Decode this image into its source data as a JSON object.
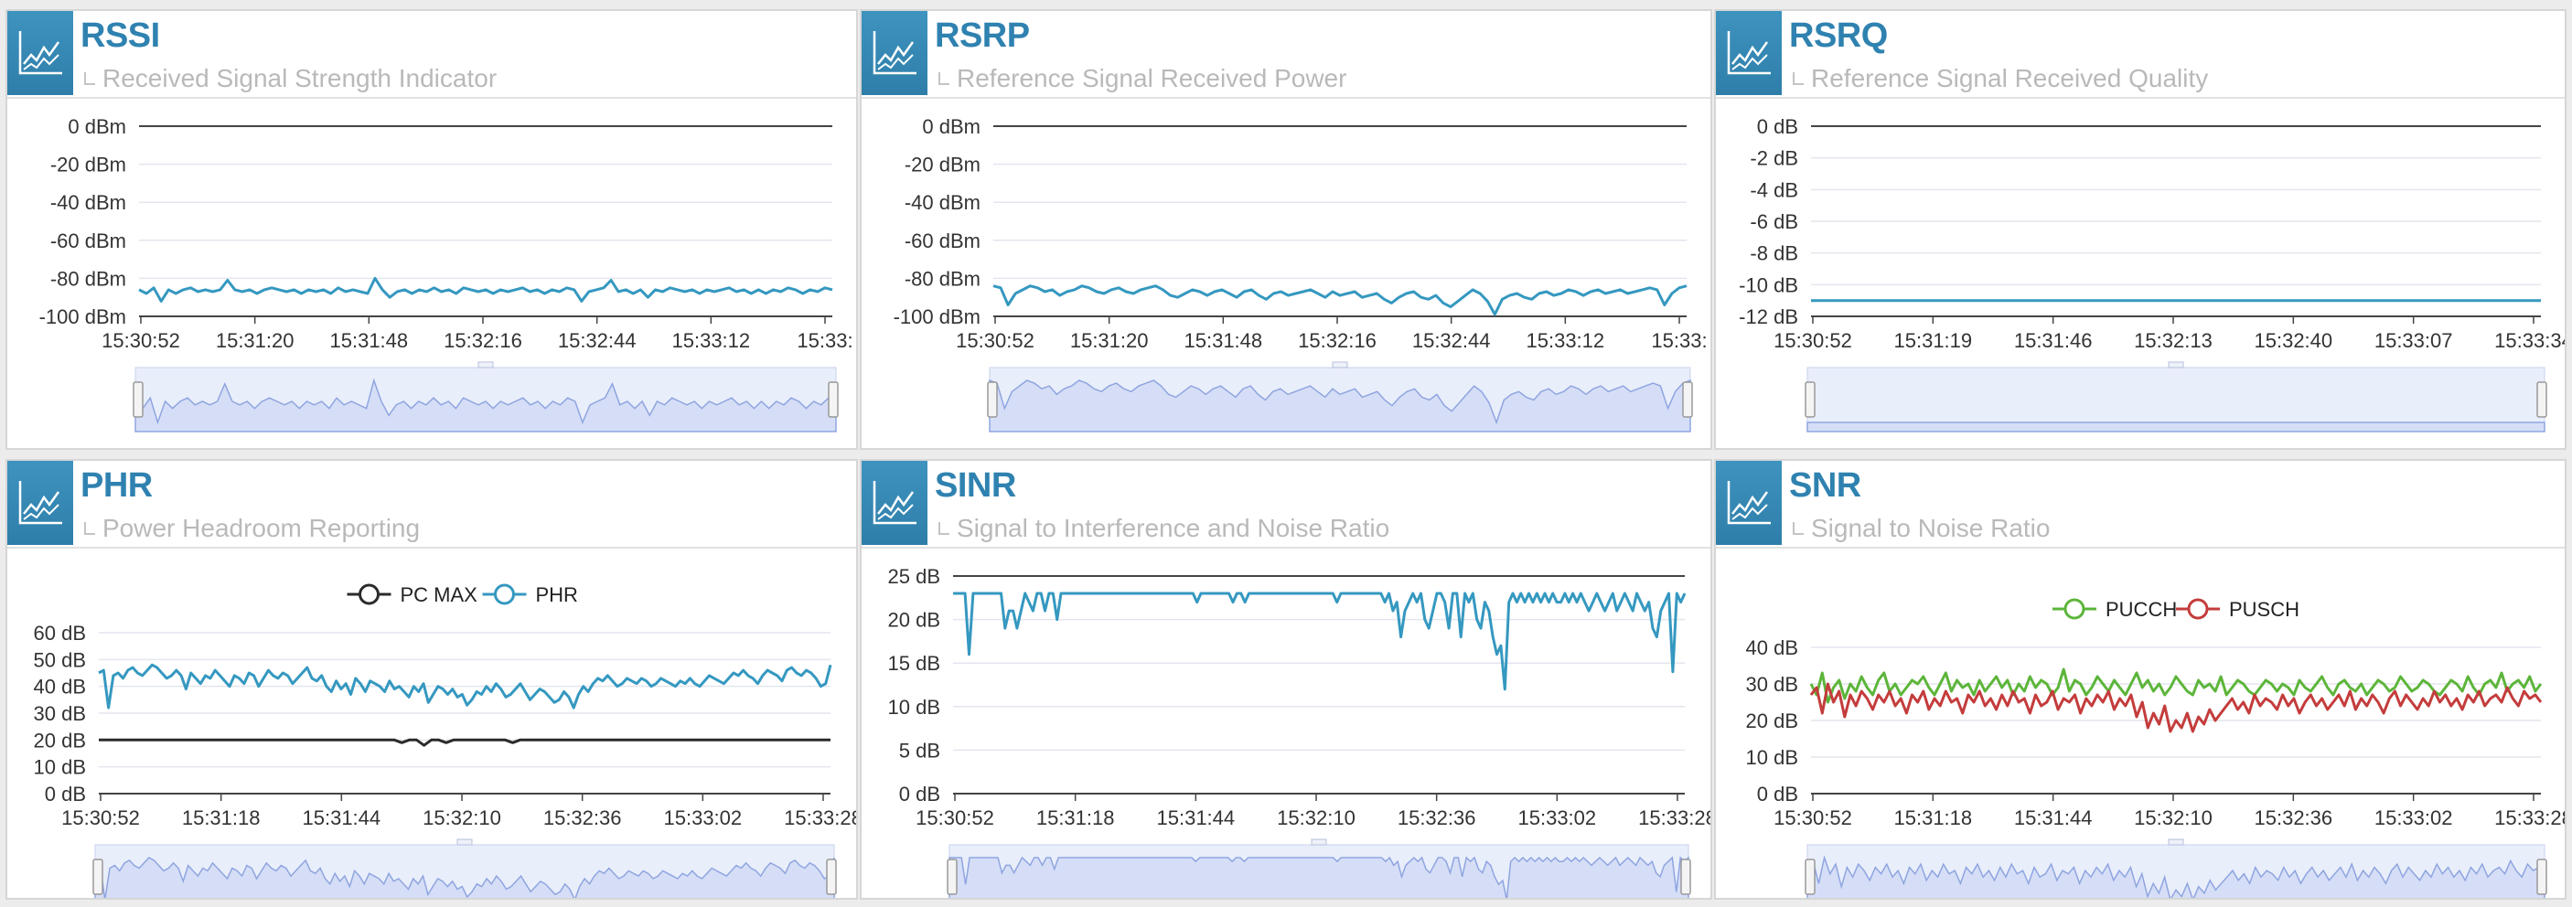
{
  "colors": {
    "series_blue": "#3598c0",
    "series_dark": "#2b2b2b",
    "series_green": "#5cb53a",
    "series_red": "#c43c3c",
    "navigator_fill": "#d9e2f7",
    "navigator_line": "#8fa5e0",
    "header_title": "#2f82b0",
    "icon_bg": "#3a8cba"
  },
  "panels": [
    {
      "title": "RSSI",
      "subtitle": "Received Signal Strength Indicator",
      "icon": "line-chart-icon"
    },
    {
      "title": "RSRP",
      "subtitle": "Reference Signal Received Power",
      "icon": "line-chart-icon"
    },
    {
      "title": "RSRQ",
      "subtitle": "Reference Signal Received Quality",
      "icon": "line-chart-icon"
    },
    {
      "title": "PHR",
      "subtitle": "Power Headroom Reporting",
      "icon": "line-chart-icon"
    },
    {
      "title": "SINR",
      "subtitle": "Signal to Interference and Noise Ratio",
      "icon": "line-chart-icon"
    },
    {
      "title": "SNR",
      "subtitle": "Signal to Noise Ratio",
      "icon": "line-chart-icon"
    }
  ],
  "chart_data": [
    {
      "type": "line",
      "title": "RSSI",
      "ylim": [
        -100,
        0
      ],
      "yticks": [
        "0 dBm",
        "-20 dBm",
        "-40 dBm",
        "-60 dBm",
        "-80 dBm",
        "-100 dBm"
      ],
      "xticks": [
        "15:30:52",
        "15:31:20",
        "15:31:48",
        "15:32:16",
        "15:32:44",
        "15:33:12",
        "15:33:"
      ],
      "grid": true,
      "legend": "none",
      "navigator": true,
      "series": [
        {
          "color": "#3598c0",
          "values": [
            -86,
            -88,
            -85,
            -92,
            -86,
            -88,
            -86,
            -85,
            -87,
            -86,
            -87,
            -86,
            -81,
            -86,
            -87,
            -86,
            -88,
            -86,
            -85,
            -86,
            -87,
            -86,
            -88,
            -86,
            -87,
            -86,
            -88,
            -85,
            -87,
            -86,
            -87,
            -88,
            -80,
            -86,
            -90,
            -87,
            -86,
            -88,
            -86,
            -87,
            -85,
            -87,
            -86,
            -88,
            -85,
            -86,
            -87,
            -86,
            -88,
            -86,
            -87,
            -86,
            -85,
            -87,
            -86,
            -88,
            -86,
            -87,
            -85,
            -86,
            -92,
            -87,
            -86,
            -85,
            -81,
            -87,
            -86,
            -88,
            -86,
            -90,
            -86,
            -87,
            -85,
            -86,
            -87,
            -86,
            -88,
            -86,
            -87,
            -86,
            -85,
            -87,
            -86,
            -88,
            -86,
            -88,
            -86,
            -87,
            -85,
            -86,
            -88,
            -86,
            -87,
            -85,
            -86
          ]
        }
      ]
    },
    {
      "type": "line",
      "title": "RSRP",
      "ylim": [
        -100,
        0
      ],
      "yticks": [
        "0 dBm",
        "-20 dBm",
        "-40 dBm",
        "-60 dBm",
        "-80 dBm",
        "-100 dBm"
      ],
      "xticks": [
        "15:30:52",
        "15:31:20",
        "15:31:48",
        "15:32:16",
        "15:32:44",
        "15:33:12",
        "15:33:"
      ],
      "grid": true,
      "legend": "none",
      "navigator": true,
      "series": [
        {
          "color": "#3598c0",
          "values": [
            -84,
            -85,
            -94,
            -88,
            -86,
            -84,
            -85,
            -87,
            -86,
            -89,
            -87,
            -86,
            -84,
            -85,
            -87,
            -88,
            -86,
            -85,
            -87,
            -88,
            -86,
            -85,
            -84,
            -86,
            -89,
            -90,
            -88,
            -86,
            -87,
            -89,
            -87,
            -86,
            -88,
            -90,
            -87,
            -86,
            -89,
            -91,
            -88,
            -87,
            -89,
            -88,
            -87,
            -86,
            -88,
            -90,
            -87,
            -89,
            -88,
            -87,
            -90,
            -89,
            -88,
            -91,
            -93,
            -90,
            -88,
            -87,
            -90,
            -91,
            -89,
            -93,
            -95,
            -92,
            -89,
            -86,
            -88,
            -92,
            -99,
            -91,
            -89,
            -88,
            -90,
            -91,
            -88,
            -87,
            -89,
            -88,
            -86,
            -87,
            -89,
            -87,
            -86,
            -88,
            -87,
            -86,
            -88,
            -87,
            -86,
            -85,
            -86,
            -94,
            -88,
            -85,
            -84
          ]
        }
      ]
    },
    {
      "type": "line",
      "title": "RSRQ",
      "ylim": [
        -12,
        0
      ],
      "yticks": [
        "0 dB",
        "-2 dB",
        "-4 dB",
        "-6 dB",
        "-8 dB",
        "-10 dB",
        "-12 dB"
      ],
      "xticks": [
        "15:30:52",
        "15:31:19",
        "15:31:46",
        "15:32:13",
        "15:32:40",
        "15:33:07",
        "15:33:34"
      ],
      "grid": true,
      "legend": "none",
      "navigator": true,
      "series": [
        {
          "color": "#3598c0",
          "values": [
            -11,
            -11,
            -11,
            -11,
            -11,
            -11,
            -11,
            -11,
            -11,
            -11,
            -11,
            -11,
            -11,
            -11,
            -11,
            -11,
            -11,
            -11,
            -11,
            -11
          ]
        }
      ]
    },
    {
      "type": "line",
      "title": "PHR",
      "ylim": [
        0,
        60
      ],
      "yticks": [
        "60 dB",
        "50 dB",
        "40 dB",
        "30 dB",
        "20 dB",
        "10 dB",
        "0 dB"
      ],
      "xticks": [
        "15:30:52",
        "15:31:18",
        "15:31:44",
        "15:32:10",
        "15:32:36",
        "15:33:02",
        "15:33:28"
      ],
      "grid": true,
      "legend": "top-center",
      "navigator": true,
      "series": [
        {
          "name": "PC MAX",
          "color": "#2b2b2b",
          "values": [
            20,
            20,
            20,
            20,
            20,
            20,
            20,
            20,
            20,
            20,
            20,
            20,
            20,
            20,
            20,
            20,
            20,
            20,
            20,
            20,
            20,
            20,
            20,
            20,
            20,
            20,
            20,
            20,
            20,
            20,
            20,
            20,
            20,
            20,
            20,
            20,
            20,
            20,
            20,
            20,
            20,
            19,
            20,
            20,
            18,
            20,
            20,
            19,
            20,
            20,
            20,
            20,
            20,
            20,
            20,
            20,
            19,
            20,
            20,
            20,
            20,
            20,
            20,
            20,
            20,
            20,
            20,
            20,
            20,
            20,
            20,
            20,
            20,
            20,
            20,
            20,
            20,
            20,
            20,
            20,
            20,
            20,
            20,
            20,
            20,
            20,
            20,
            20,
            20,
            20,
            20,
            20,
            20,
            20,
            20,
            20,
            20,
            20,
            20,
            20
          ]
        },
        {
          "name": "PHR",
          "color": "#3598c0",
          "values": [
            45,
            46,
            32,
            44,
            45,
            43,
            46,
            47,
            45,
            44,
            46,
            48,
            47,
            45,
            43,
            44,
            46,
            44,
            39,
            45,
            43,
            41,
            44,
            43,
            46,
            44,
            42,
            40,
            44,
            43,
            41,
            45,
            44,
            40,
            43,
            46,
            44,
            43,
            45,
            44,
            41,
            43,
            45,
            47,
            43,
            42,
            44,
            40,
            38,
            42,
            39,
            41,
            37,
            43,
            41,
            38,
            42,
            41,
            40,
            38,
            42,
            39,
            40,
            38,
            36,
            40,
            38,
            41,
            34,
            37,
            40,
            39,
            37,
            39,
            36,
            37,
            33,
            35,
            38,
            37,
            40,
            38,
            41,
            39,
            36,
            37,
            39,
            41,
            38,
            35,
            37,
            39,
            38,
            36,
            34,
            35,
            38,
            36,
            32,
            37,
            40,
            38,
            41,
            43,
            42,
            44,
            42,
            40,
            41,
            43,
            42,
            41,
            43,
            42,
            40,
            41,
            43,
            42,
            41,
            40,
            42,
            41,
            43,
            41,
            40,
            42,
            44,
            43,
            42,
            41,
            43,
            45,
            44,
            46,
            44,
            43,
            41,
            44,
            46,
            45,
            44,
            42,
            46,
            47,
            45,
            44,
            46,
            45,
            43,
            40,
            41,
            48
          ]
        }
      ]
    },
    {
      "type": "line",
      "title": "SINR",
      "ylim": [
        0,
        25
      ],
      "yticks": [
        "25 dB",
        "20 dB",
        "15 dB",
        "10 dB",
        "5 dB",
        "0 dB"
      ],
      "xticks": [
        "15:30:52",
        "15:31:18",
        "15:31:44",
        "15:32:10",
        "15:32:36",
        "15:33:02",
        "15:33:28"
      ],
      "grid": true,
      "legend": "none",
      "navigator": true,
      "series": [
        {
          "color": "#3598c0",
          "values": [
            23,
            23,
            23,
            23,
            16,
            23,
            23,
            23,
            23,
            23,
            23,
            23,
            23,
            19,
            21,
            21,
            19,
            21,
            23,
            22,
            21,
            23,
            23,
            21,
            23,
            23,
            20,
            23,
            23,
            23,
            23,
            23,
            23,
            23,
            23,
            23,
            23,
            23,
            23,
            23,
            23,
            23,
            23,
            23,
            23,
            23,
            23,
            23,
            23,
            23,
            23,
            23,
            23,
            23,
            23,
            23,
            23,
            23,
            23,
            23,
            23,
            22,
            23,
            23,
            23,
            23,
            23,
            23,
            23,
            23,
            22,
            23,
            23,
            22,
            23,
            23,
            23,
            23,
            23,
            23,
            23,
            23,
            23,
            23,
            23,
            23,
            23,
            23,
            23,
            23,
            23,
            23,
            23,
            23,
            23,
            23,
            22,
            23,
            23,
            23,
            23,
            23,
            23,
            23,
            23,
            23,
            23,
            23,
            22,
            23,
            21,
            22,
            18,
            21,
            22,
            23,
            22,
            23,
            20,
            19,
            21,
            23,
            23,
            22,
            19,
            23,
            23,
            18,
            23,
            22,
            23,
            20,
            19,
            22,
            21,
            18,
            16,
            17,
            12,
            22,
            23,
            22,
            23,
            22,
            23,
            22,
            23,
            22,
            23,
            22,
            23,
            22,
            22,
            23,
            22,
            23,
            22,
            23,
            22,
            21,
            22,
            23,
            22,
            21,
            22,
            23,
            21,
            22,
            23,
            22,
            21,
            23,
            22,
            21,
            22,
            19,
            18,
            21,
            22,
            23,
            14,
            23,
            22,
            23
          ]
        }
      ]
    },
    {
      "type": "line",
      "title": "SNR",
      "ylim": [
        0,
        40
      ],
      "yticks": [
        "40 dB",
        "30 dB",
        "20 dB",
        "10 dB",
        "0 dB"
      ],
      "xticks": [
        "15:30:52",
        "15:31:18",
        "15:31:44",
        "15:32:10",
        "15:32:36",
        "15:33:02",
        "15:33:28"
      ],
      "grid": true,
      "legend": "top-center",
      "navigator": true,
      "series": [
        {
          "name": "PUCCH",
          "color": "#5cb53a",
          "values": [
            30,
            27,
            33,
            25,
            29,
            31,
            26,
            30,
            28,
            32,
            29,
            27,
            31,
            33,
            28,
            30,
            27,
            29,
            31,
            30,
            32,
            29,
            27,
            30,
            33,
            28,
            31,
            29,
            30,
            27,
            31,
            28,
            30,
            32,
            29,
            31,
            27,
            30,
            28,
            32,
            29,
            31,
            30,
            27,
            29,
            34,
            28,
            31,
            30,
            27,
            29,
            32,
            30,
            28,
            31,
            29,
            27,
            30,
            33,
            29,
            31,
            28,
            30,
            27,
            29,
            32,
            30,
            28,
            27,
            31,
            29,
            30,
            28,
            32,
            27,
            29,
            31,
            30,
            28,
            27,
            29,
            31,
            30,
            28,
            30,
            29,
            27,
            31,
            29,
            28,
            30,
            32,
            29,
            27,
            30,
            31,
            29,
            28,
            30,
            27,
            29,
            31,
            30,
            28,
            29,
            32,
            30,
            28,
            29,
            31,
            30,
            28,
            27,
            29,
            31,
            30,
            28,
            32,
            29,
            27,
            30,
            31,
            29,
            33,
            28,
            30,
            31,
            29,
            32,
            28,
            30
          ]
        },
        {
          "name": "PUSCH",
          "color": "#c43c3c",
          "values": [
            27,
            29,
            22,
            30,
            25,
            28,
            21,
            27,
            24,
            28,
            26,
            23,
            27,
            25,
            28,
            24,
            26,
            22,
            27,
            25,
            28,
            23,
            26,
            24,
            28,
            25,
            26,
            22,
            27,
            25,
            28,
            24,
            26,
            23,
            27,
            24,
            28,
            25,
            26,
            22,
            27,
            24,
            25,
            28,
            23,
            26,
            25,
            27,
            22,
            26,
            24,
            27,
            25,
            28,
            23,
            26,
            24,
            27,
            21,
            25,
            18,
            22,
            19,
            24,
            17,
            20,
            18,
            22,
            17,
            21,
            19,
            23,
            20,
            22,
            24,
            26,
            23,
            25,
            22,
            27,
            24,
            26,
            25,
            23,
            27,
            24,
            26,
            22,
            25,
            27,
            24,
            26,
            23,
            25,
            27,
            24,
            28,
            23,
            26,
            24,
            27,
            25,
            22,
            26,
            28,
            24,
            27,
            25,
            23,
            26,
            24,
            28,
            25,
            27,
            24,
            26,
            23,
            27,
            25,
            28,
            24,
            26,
            27,
            25,
            29,
            26,
            24,
            28,
            26,
            27,
            25
          ]
        }
      ]
    }
  ]
}
